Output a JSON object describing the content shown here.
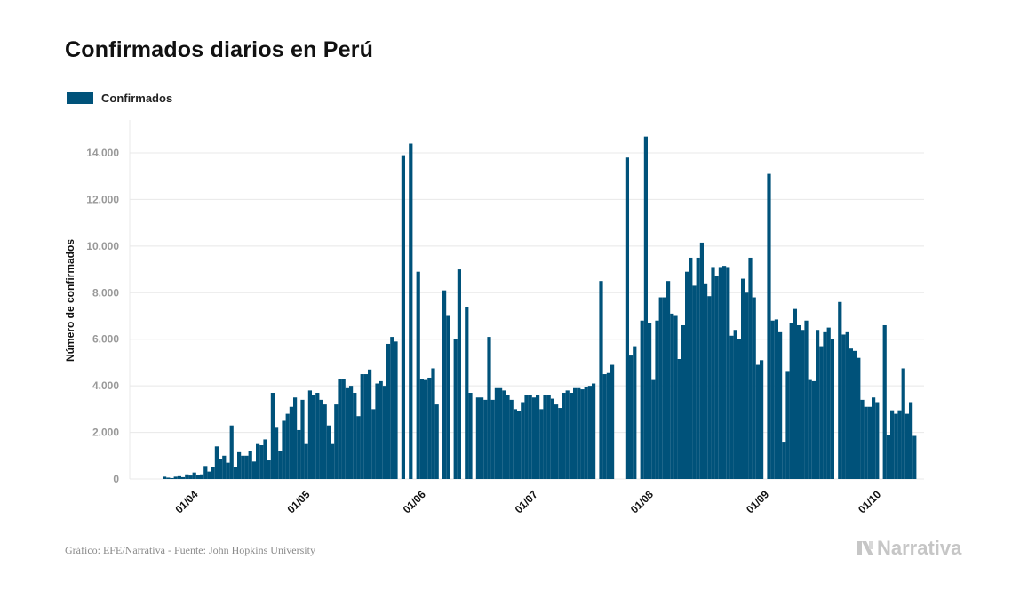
{
  "title": "Confirmados diarios en Perú",
  "footer": "Gráfico: EFE/Narrativa - Fuente: John Hopkins University",
  "brand": "Narrativa",
  "colors": {
    "bar": "#00527a",
    "grid": "#e8e8e8",
    "tick": "#999999",
    "axis_label": "#111111"
  },
  "chart_data": {
    "type": "bar",
    "title": "Confirmados diarios en Perú",
    "ylabel": "Número de confirmados",
    "xlabel": "",
    "legend": "top-left",
    "grid": true,
    "ylim": [
      0,
      15000
    ],
    "yticks": [
      0,
      2000,
      4000,
      6000,
      8000,
      10000,
      12000,
      14000
    ],
    "ytick_labels": [
      "0",
      "2.000",
      "4.000",
      "6.000",
      "8.000",
      "10.000",
      "12.000",
      "14.000"
    ],
    "xticks": [
      {
        "label": "01/04",
        "index": 7
      },
      {
        "label": "01/05",
        "index": 37
      },
      {
        "label": "01/06",
        "index": 68
      },
      {
        "label": "01/07",
        "index": 98
      },
      {
        "label": "01/08",
        "index": 129
      },
      {
        "label": "01/09",
        "index": 160
      },
      {
        "label": "01/10",
        "index": 190
      }
    ],
    "series": [
      {
        "name": "Confirmados",
        "values": [
          100,
          60,
          40,
          100,
          120,
          80,
          200,
          150,
          280,
          160,
          200,
          560,
          320,
          500,
          1400,
          850,
          1000,
          700,
          2300,
          500,
          1150,
          1000,
          1000,
          1200,
          750,
          1500,
          1450,
          1700,
          800,
          3700,
          2200,
          1200,
          2500,
          2800,
          3100,
          3500,
          2100,
          3400,
          1500,
          3800,
          3600,
          3700,
          3400,
          3200,
          2300,
          1500,
          3200,
          4300,
          4300,
          3900,
          4000,
          3700,
          2700,
          4500,
          4500,
          4700,
          3000,
          4100,
          4200,
          4000,
          5800,
          6100,
          5900,
          0,
          13900,
          0,
          14400,
          0,
          8900,
          4300,
          4250,
          4350,
          4750,
          3200,
          0,
          8100,
          7000,
          0,
          6000,
          9000,
          0,
          7400,
          3700,
          0,
          3500,
          3500,
          3400,
          6100,
          3400,
          3900,
          3900,
          3800,
          3600,
          3400,
          3000,
          2900,
          3300,
          3600,
          3600,
          3500,
          3600,
          3000,
          3600,
          3600,
          3450,
          3200,
          3050,
          3700,
          3800,
          3700,
          3900,
          3900,
          3850,
          3950,
          4000,
          4100,
          0,
          8500,
          4500,
          4550,
          4900,
          0,
          0,
          0,
          13800,
          5300,
          5700,
          0,
          6800,
          14700,
          6700,
          4250,
          6800,
          7800,
          7800,
          8500,
          7100,
          7000,
          5150,
          6600,
          8900,
          9500,
          8300,
          9500,
          10150,
          8400,
          7850,
          9100,
          8700,
          9100,
          9150,
          9100,
          6150,
          6400,
          6000,
          8600,
          8000,
          9500,
          7800,
          4900,
          5100,
          0,
          13100,
          6800,
          6850,
          6300,
          1600,
          4600,
          6700,
          7300,
          6600,
          6400,
          6800,
          4250,
          4200,
          6400,
          5700,
          6300,
          6500,
          6000,
          0,
          7600,
          6200,
          6300,
          5600,
          5500,
          5200,
          3400,
          3100,
          3100,
          3500,
          3300,
          0,
          6600,
          1900,
          2950,
          2800,
          2950,
          4750,
          2800,
          3300,
          1850
        ]
      }
    ]
  }
}
